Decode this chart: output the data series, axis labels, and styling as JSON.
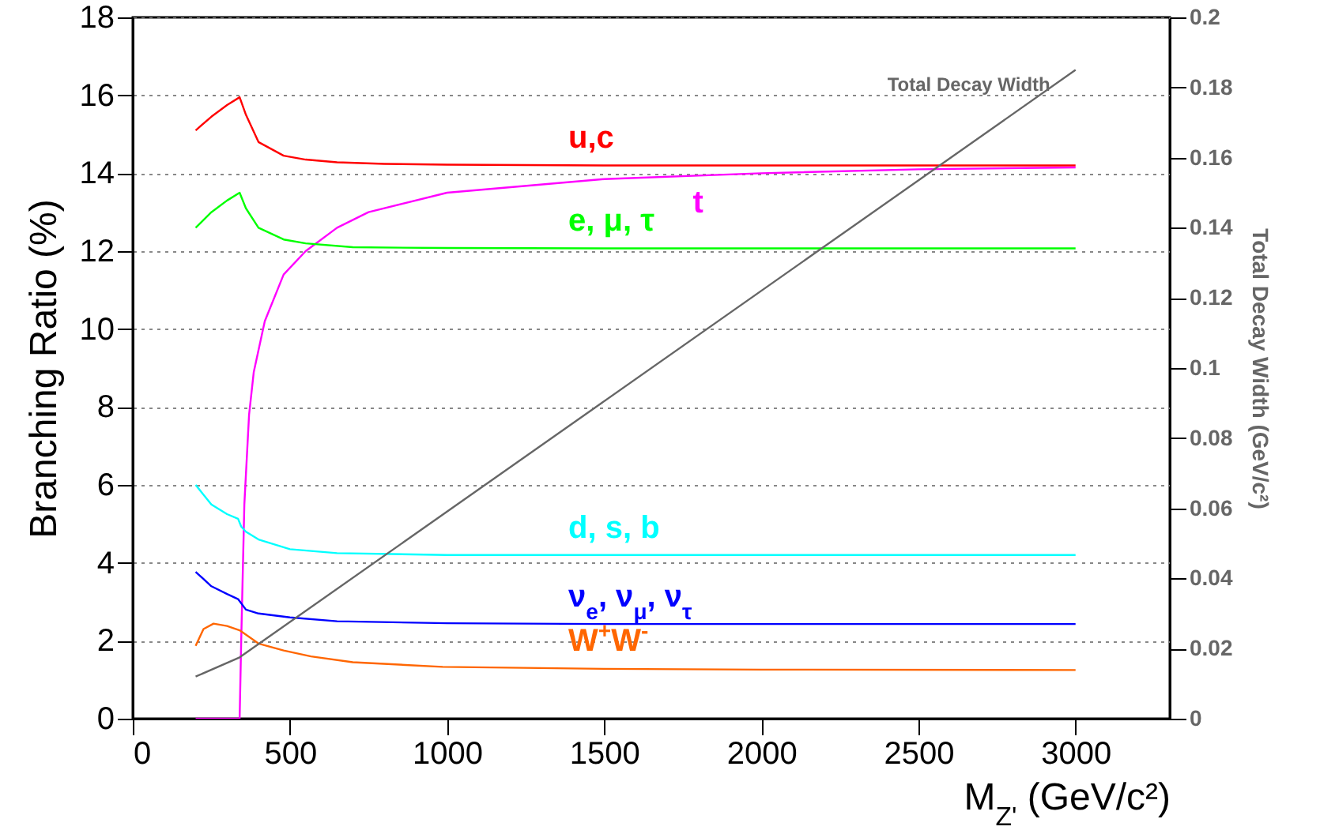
{
  "chart_data": {
    "type": "line",
    "xlabel": "M$_{Z'}$ (GeV/c²)",
    "ylabel": "Branching Ratio (%)",
    "y2label": "Total Decay Width (GeV/c²)",
    "xlim": [
      0,
      3300
    ],
    "xticks": [
      0,
      500,
      1000,
      1500,
      2000,
      2500,
      3000
    ],
    "ylim": [
      0,
      18
    ],
    "yticks": [
      0,
      2,
      4,
      6,
      8,
      10,
      12,
      14,
      16,
      18
    ],
    "y2lim": [
      0,
      0.2
    ],
    "y2ticks": [
      0,
      0.02,
      0.04,
      0.06,
      0.08,
      0.1,
      0.12,
      0.14,
      0.16,
      0.18,
      0.2
    ],
    "grid": "y",
    "line_style": "solid",
    "series": [
      {
        "name": "u,c",
        "color": "#ff0000",
        "x": [
          200,
          250,
          300,
          340,
          360,
          400,
          480,
          550,
          650,
          800,
          1000,
          1500,
          2000,
          3000
        ],
        "values": [
          15.1,
          15.45,
          15.75,
          15.95,
          15.5,
          14.8,
          14.45,
          14.35,
          14.28,
          14.24,
          14.22,
          14.2,
          14.2,
          14.2
        ]
      },
      {
        "name": "t",
        "color": "#ff00ff",
        "x": [
          200,
          340,
          345,
          355,
          370,
          385,
          420,
          480,
          550,
          650,
          750,
          1000,
          1500,
          2000,
          2500,
          3000
        ],
        "values": [
          0,
          0,
          2,
          5.5,
          7.8,
          8.9,
          10.2,
          11.4,
          12.0,
          12.6,
          13.0,
          13.5,
          13.85,
          14.0,
          14.1,
          14.15
        ]
      },
      {
        "name": "e, μ, τ",
        "color": "#00ff00",
        "x": [
          200,
          250,
          300,
          340,
          360,
          400,
          480,
          550,
          700,
          1000,
          1500,
          3000
        ],
        "values": [
          12.6,
          13.0,
          13.3,
          13.5,
          13.1,
          12.6,
          12.3,
          12.2,
          12.1,
          12.08,
          12.07,
          12.07
        ]
      },
      {
        "name": "d, s, b",
        "color": "#00ffff",
        "x": [
          200,
          250,
          300,
          335,
          345,
          360,
          400,
          500,
          650,
          1000,
          1500,
          3000
        ],
        "values": [
          6.0,
          5.5,
          5.25,
          5.13,
          4.93,
          4.8,
          4.6,
          4.35,
          4.25,
          4.2,
          4.2,
          4.2
        ]
      },
      {
        "name": "ν$_{e}$, ν$_{μ}$, ν$_{τ}$",
        "color": "#0000ff",
        "x": [
          200,
          250,
          300,
          335,
          360,
          400,
          500,
          650,
          1000,
          1500,
          3000
        ],
        "values": [
          3.77,
          3.4,
          3.2,
          3.07,
          2.8,
          2.7,
          2.6,
          2.5,
          2.45,
          2.43,
          2.43
        ]
      },
      {
        "name": "W$^{+}$W$^{-}$",
        "color": "#ff6600",
        "x": [
          200,
          225,
          257,
          300,
          340,
          400,
          480,
          567,
          700,
          986,
          1500,
          2000,
          3000
        ],
        "values": [
          1.87,
          2.3,
          2.44,
          2.38,
          2.27,
          1.93,
          1.75,
          1.6,
          1.45,
          1.33,
          1.28,
          1.26,
          1.25
        ]
      },
      {
        "name": "Total Decay Width",
        "color": "#666666",
        "axis": "y2",
        "x": [
          200,
          340,
          3000
        ],
        "values": [
          0.012,
          0.0175,
          0.185
        ]
      }
    ]
  }
}
